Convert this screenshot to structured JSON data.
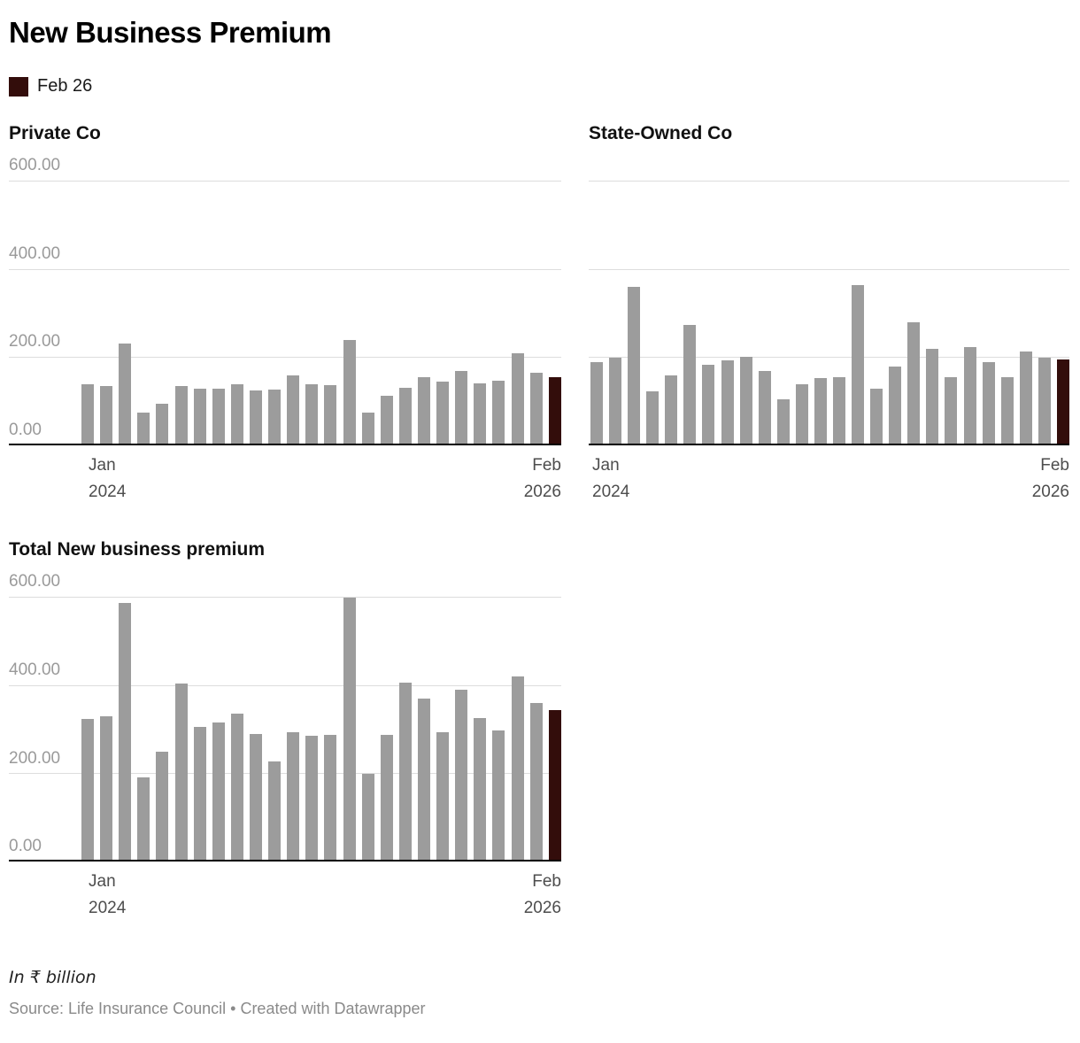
{
  "title": "New Business Premium",
  "legend": {
    "label": "Feb 26"
  },
  "colors": {
    "bar": "#9c9c9c",
    "highlight": "#330d0b",
    "grid": "#dddddd",
    "axis": "#000000"
  },
  "footer": {
    "note": "In ₹ billion",
    "source": "Source: Life Insurance Council • Created with Datawrapper"
  },
  "chart_data": [
    {
      "type": "bar",
      "title": "Private Co",
      "ylim": [
        0,
        600
      ],
      "y_ticks": [
        "600.00",
        "400.00",
        "200.00",
        "0.00"
      ],
      "show_y_tick_labels": true,
      "x_tick_left": [
        "Jan",
        "2024"
      ],
      "x_tick_right": [
        "Feb",
        "2026"
      ],
      "highlight_index": 25,
      "highlight_label": "Feb 26",
      "categories": [
        "Jan 2024",
        "Feb 2024",
        "Mar 2024",
        "Apr 2024",
        "May 2024",
        "Jun 2024",
        "Jul 2024",
        "Aug 2024",
        "Sep 2024",
        "Oct 2024",
        "Nov 2024",
        "Dec 2024",
        "Jan 2025",
        "Feb 2025",
        "Mar 2025",
        "Apr 2025",
        "May 2025",
        "Jun 2025",
        "Jul 2025",
        "Aug 2025",
        "Sep 2025",
        "Oct 2025",
        "Nov 2025",
        "Dec 2025",
        "Jan 2026",
        "Feb 2026"
      ],
      "values": [
        135,
        130,
        228,
        70,
        90,
        130,
        124,
        124,
        135,
        120,
        123,
        155,
        134,
        133,
        235,
        70,
        108,
        126,
        150,
        140,
        165,
        136,
        143,
        205,
        160,
        150
      ]
    },
    {
      "type": "bar",
      "title": "State-Owned Co",
      "ylim": [
        0,
        600
      ],
      "y_ticks": [
        "600.00",
        "400.00",
        "200.00",
        "0.00"
      ],
      "show_y_tick_labels": false,
      "x_tick_left": [
        "Jan",
        "2024"
      ],
      "x_tick_right": [
        "Feb",
        "2026"
      ],
      "highlight_index": 25,
      "highlight_label": "Feb 26",
      "categories": [
        "Jan 2024",
        "Feb 2024",
        "Mar 2024",
        "Apr 2024",
        "May 2024",
        "Jun 2024",
        "Jul 2024",
        "Aug 2024",
        "Sep 2024",
        "Oct 2024",
        "Nov 2024",
        "Dec 2024",
        "Jan 2025",
        "Feb 2025",
        "Mar 2025",
        "Apr 2025",
        "May 2025",
        "Jun 2025",
        "Jul 2025",
        "Aug 2025",
        "Sep 2025",
        "Oct 2025",
        "Nov 2025",
        "Dec 2025",
        "Jan 2026",
        "Feb 2026"
      ],
      "values": [
        185,
        195,
        355,
        118,
        155,
        270,
        178,
        188,
        197,
        165,
        100,
        135,
        148,
        150,
        360,
        125,
        175,
        275,
        215,
        150,
        220,
        185,
        150,
        210,
        195,
        190
      ]
    },
    {
      "type": "bar",
      "title": "Total New business premium",
      "ylim": [
        0,
        600
      ],
      "y_ticks": [
        "600.00",
        "400.00",
        "200.00",
        "0.00"
      ],
      "show_y_tick_labels": true,
      "x_tick_left": [
        "Jan",
        "2024"
      ],
      "x_tick_right": [
        "Feb",
        "2026"
      ],
      "highlight_index": 25,
      "highlight_label": "Feb 26",
      "categories": [
        "Jan 2024",
        "Feb 2024",
        "Mar 2024",
        "Apr 2024",
        "May 2024",
        "Jun 2024",
        "Jul 2024",
        "Aug 2024",
        "Sep 2024",
        "Oct 2024",
        "Nov 2024",
        "Dec 2024",
        "Jan 2025",
        "Feb 2025",
        "Mar 2025",
        "Apr 2025",
        "May 2025",
        "Jun 2025",
        "Jul 2025",
        "Aug 2025",
        "Sep 2025",
        "Oct 2025",
        "Nov 2025",
        "Dec 2025",
        "Jan 2026",
        "Feb 2026"
      ],
      "values": [
        320,
        325,
        583,
        188,
        245,
        400,
        302,
        312,
        332,
        285,
        223,
        290,
        282,
        283,
        595,
        195,
        283,
        401,
        365,
        290,
        385,
        321,
        293,
        415,
        355,
        340
      ]
    }
  ]
}
